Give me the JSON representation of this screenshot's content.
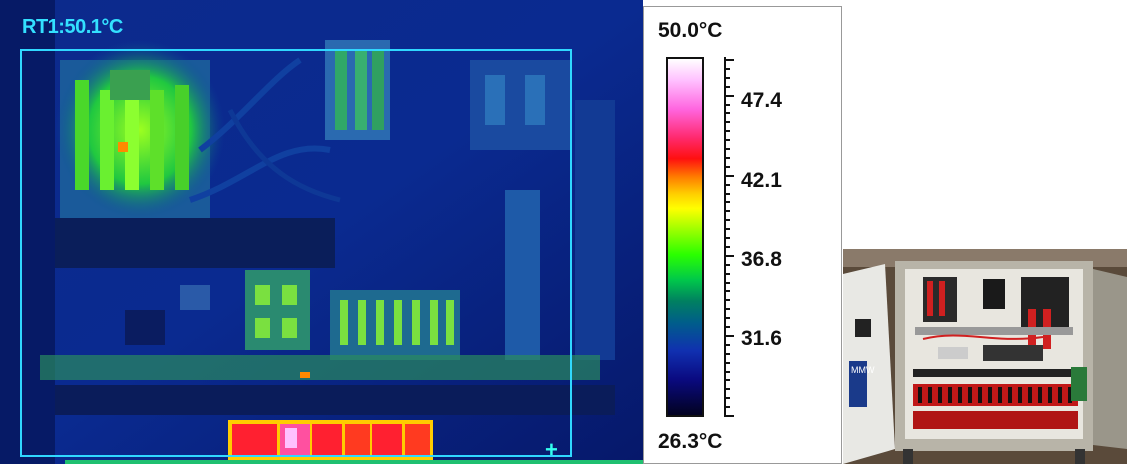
{
  "thermal": {
    "readout": "RT1:50.1°C"
  },
  "scale": {
    "max_label": "50.0°C",
    "min_label": "26.3°C",
    "ticks": [
      "47.4",
      "42.1",
      "36.8",
      "31.6"
    ]
  },
  "photo": {
    "label_text": "MMW"
  }
}
